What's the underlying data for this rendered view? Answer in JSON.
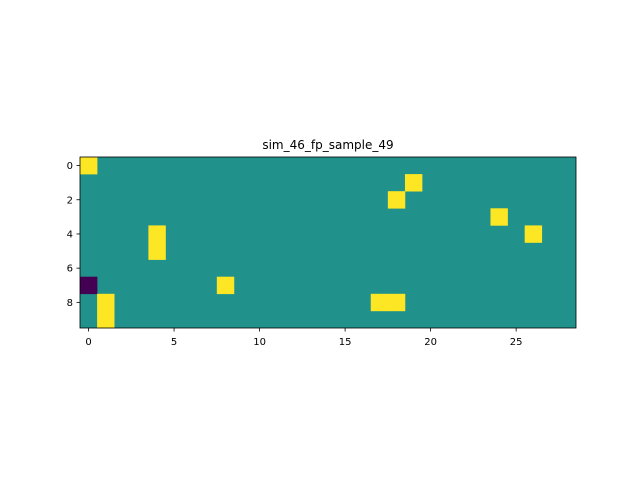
{
  "chart_data": {
    "type": "heatmap",
    "title": "sim_46_fp_sample_49",
    "xlabel": "",
    "ylabel": "",
    "n_rows": 10,
    "n_cols": 29,
    "xlim": [
      -0.5,
      28.5
    ],
    "ylim": [
      9.5,
      -0.5
    ],
    "x_ticks": [
      0,
      5,
      10,
      15,
      20,
      25
    ],
    "y_ticks": [
      0,
      2,
      4,
      6,
      8
    ],
    "colormap": "viridis",
    "value_colors": {
      "-1": "#440154",
      "0": "#21918c",
      "1": "#fde725"
    },
    "background_value": 0,
    "grid": false,
    "cells": [
      {
        "row": 0,
        "col": 0,
        "value": 1
      },
      {
        "row": 1,
        "col": 19,
        "value": 1
      },
      {
        "row": 2,
        "col": 18,
        "value": 1
      },
      {
        "row": 3,
        "col": 24,
        "value": 1
      },
      {
        "row": 4,
        "col": 4,
        "value": 1
      },
      {
        "row": 4,
        "col": 26,
        "value": 1
      },
      {
        "row": 5,
        "col": 4,
        "value": 1
      },
      {
        "row": 7,
        "col": 0,
        "value": -1
      },
      {
        "row": 7,
        "col": 8,
        "value": 1
      },
      {
        "row": 8,
        "col": 1,
        "value": 1
      },
      {
        "row": 8,
        "col": 17,
        "value": 1
      },
      {
        "row": 8,
        "col": 18,
        "value": 1
      },
      {
        "row": 9,
        "col": 1,
        "value": 1
      }
    ]
  }
}
